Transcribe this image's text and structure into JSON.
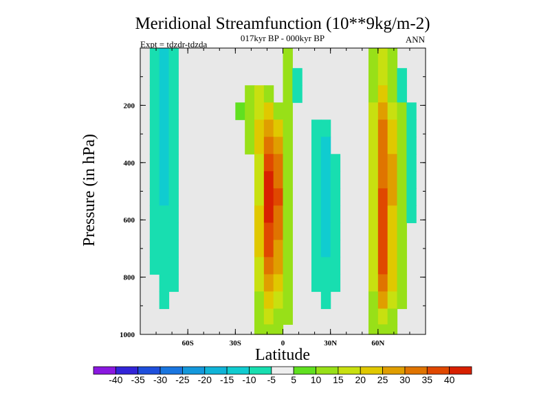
{
  "chart_data": {
    "type": "heatmap",
    "title": "Meridional Streamfunction (10**9kg/m-2)",
    "subtitle": "017kyr BP - 000kyr BP",
    "left_label": "Expt = tdzdr-tdzda",
    "right_label": "ANN",
    "xlabel": "Latitude",
    "ylabel": "Pressure (in hPa)",
    "xlim": [
      -90,
      90
    ],
    "ylim": [
      0,
      1000
    ],
    "y_reversed": true,
    "x_ticks": [
      {
        "value": -60,
        "label": "60S"
      },
      {
        "value": -30,
        "label": "30S"
      },
      {
        "value": 0,
        "label": "0"
      },
      {
        "value": 30,
        "label": "30N"
      },
      {
        "value": 60,
        "label": "60N"
      }
    ],
    "y_ticks": [
      {
        "value": 200,
        "label": "200"
      },
      {
        "value": 400,
        "label": "400"
      },
      {
        "value": 600,
        "label": "600"
      },
      {
        "value": 800,
        "label": "800"
      },
      {
        "value": 1000,
        "label": "1000"
      }
    ],
    "background_color": "#e8e8e8",
    "contour_levels": [
      -40,
      -35,
      -30,
      -25,
      -20,
      -15,
      -10,
      -5,
      5,
      10,
      15,
      20,
      25,
      30,
      35,
      40
    ],
    "level_labels": [
      "-40",
      "-35",
      "-30",
      "-25",
      "-20",
      "-15",
      "-10",
      "-5",
      "5",
      "10",
      "15",
      "20",
      "25",
      "30",
      "35",
      "40"
    ],
    "colorbar_colors": [
      "#8a18e0",
      "#3224d8",
      "#1e4fdc",
      "#1a76e0",
      "#1498dc",
      "#10b4d8",
      "#10ccd0",
      "#18deb0",
      "#eeeeee",
      "#60e020",
      "#98e018",
      "#c8e010",
      "#e0c800",
      "#e09e00",
      "#e07400",
      "#e04800",
      "#d82000"
    ],
    "cells": {
      "lat_start": -90,
      "lat_step": 6,
      "pressures": [
        40,
        100,
        160,
        220,
        280,
        340,
        400,
        460,
        520,
        580,
        640,
        700,
        760,
        820,
        880,
        940,
        990
      ],
      "rows": [
        [
          0,
          -10,
          -15,
          -10,
          0,
          0,
          0,
          0,
          0,
          0,
          0,
          0,
          0,
          0,
          0,
          10,
          0,
          0,
          0,
          0,
          0,
          0,
          0,
          0,
          10,
          15,
          10,
          0,
          0,
          0
        ],
        [
          0,
          -10,
          -15,
          -10,
          0,
          0,
          0,
          0,
          0,
          0,
          0,
          0,
          0,
          0,
          0,
          10,
          -10,
          0,
          0,
          0,
          0,
          0,
          0,
          0,
          10,
          15,
          10,
          -10,
          0,
          0
        ],
        [
          0,
          -10,
          -15,
          -10,
          0,
          0,
          0,
          0,
          0,
          0,
          0,
          10,
          15,
          10,
          0,
          10,
          -10,
          0,
          0,
          0,
          0,
          0,
          0,
          0,
          10,
          20,
          10,
          -10,
          0,
          0
        ],
        [
          0,
          -10,
          -15,
          -10,
          0,
          0,
          0,
          0,
          0,
          0,
          5,
          10,
          15,
          20,
          10,
          10,
          0,
          0,
          0,
          0,
          0,
          0,
          0,
          0,
          15,
          25,
          15,
          10,
          -10,
          0
        ],
        [
          0,
          -10,
          -15,
          -10,
          0,
          0,
          0,
          0,
          0,
          0,
          0,
          10,
          20,
          25,
          20,
          10,
          0,
          0,
          -10,
          -10,
          0,
          0,
          0,
          0,
          15,
          30,
          20,
          10,
          -10,
          0
        ],
        [
          0,
          -10,
          -15,
          -10,
          0,
          0,
          0,
          0,
          0,
          0,
          0,
          10,
          20,
          30,
          25,
          10,
          0,
          0,
          -10,
          -15,
          0,
          0,
          0,
          0,
          15,
          30,
          20,
          10,
          -10,
          0
        ],
        [
          0,
          -10,
          -15,
          -10,
          0,
          0,
          0,
          0,
          0,
          0,
          0,
          0,
          15,
          35,
          30,
          10,
          0,
          0,
          -10,
          -15,
          -10,
          0,
          0,
          0,
          15,
          30,
          25,
          10,
          -10,
          0
        ],
        [
          0,
          -10,
          -15,
          -10,
          0,
          0,
          0,
          0,
          0,
          0,
          0,
          0,
          15,
          40,
          30,
          10,
          0,
          0,
          -10,
          -15,
          -10,
          0,
          0,
          0,
          15,
          30,
          25,
          10,
          -10,
          0
        ],
        [
          0,
          -10,
          -15,
          -10,
          0,
          0,
          0,
          0,
          0,
          0,
          0,
          0,
          15,
          40,
          35,
          10,
          0,
          0,
          -10,
          -15,
          -10,
          0,
          0,
          0,
          15,
          35,
          25,
          10,
          -10,
          0
        ],
        [
          0,
          -10,
          -10,
          -10,
          0,
          0,
          0,
          0,
          0,
          0,
          0,
          0,
          20,
          40,
          30,
          10,
          0,
          0,
          -10,
          -15,
          -10,
          0,
          0,
          0,
          15,
          35,
          20,
          10,
          -10,
          0
        ],
        [
          0,
          -10,
          -10,
          -10,
          0,
          0,
          0,
          0,
          0,
          0,
          0,
          0,
          20,
          35,
          30,
          10,
          0,
          0,
          -10,
          -15,
          -10,
          0,
          0,
          0,
          15,
          35,
          20,
          10,
          0,
          0
        ],
        [
          0,
          -10,
          -10,
          -10,
          0,
          0,
          0,
          0,
          0,
          0,
          0,
          0,
          20,
          35,
          25,
          10,
          0,
          0,
          -10,
          -15,
          -10,
          0,
          0,
          0,
          15,
          35,
          20,
          10,
          0,
          0
        ],
        [
          0,
          -10,
          -10,
          -10,
          0,
          0,
          0,
          0,
          0,
          0,
          0,
          0,
          15,
          30,
          25,
          10,
          0,
          0,
          -10,
          -10,
          -10,
          0,
          0,
          0,
          15,
          35,
          20,
          10,
          0,
          0
        ],
        [
          0,
          0,
          -10,
          -10,
          0,
          0,
          0,
          0,
          0,
          0,
          0,
          0,
          15,
          25,
          20,
          10,
          0,
          0,
          -10,
          -10,
          -10,
          0,
          0,
          0,
          15,
          30,
          20,
          10,
          0,
          0
        ],
        [
          0,
          0,
          -10,
          0,
          0,
          0,
          0,
          0,
          0,
          0,
          0,
          0,
          10,
          20,
          15,
          10,
          0,
          0,
          0,
          -10,
          0,
          0,
          0,
          0,
          10,
          25,
          15,
          10,
          0,
          0
        ],
        [
          0,
          0,
          0,
          0,
          0,
          0,
          0,
          0,
          0,
          0,
          0,
          0,
          10,
          15,
          10,
          10,
          0,
          0,
          0,
          0,
          0,
          0,
          0,
          0,
          10,
          15,
          10,
          0,
          0,
          0
        ],
        [
          0,
          0,
          0,
          0,
          0,
          0,
          0,
          0,
          0,
          0,
          0,
          0,
          10,
          10,
          10,
          0,
          0,
          0,
          0,
          0,
          0,
          0,
          0,
          0,
          10,
          10,
          10,
          0,
          0,
          0
        ]
      ]
    }
  }
}
